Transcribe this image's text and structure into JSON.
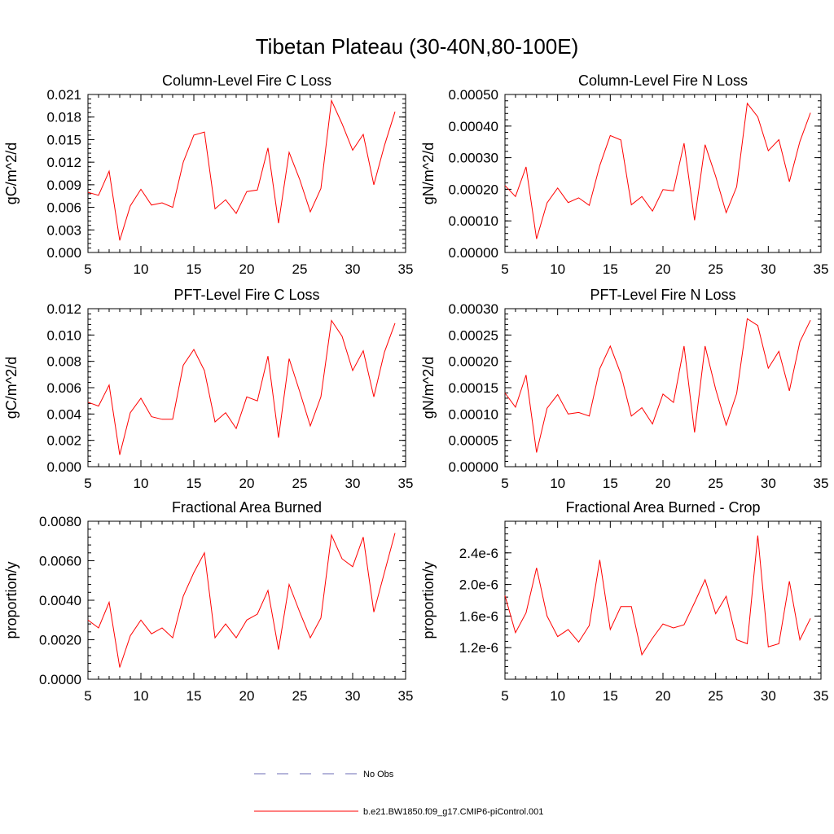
{
  "title": "Tibetan Plateau (30-40N,80-100E)",
  "legend": {
    "items": [
      {
        "label": "No Obs",
        "color": "#6b6bb5",
        "dash": true
      },
      {
        "label": "b.e21.BW1850.f09_g17.CMIP6-piControl.001",
        "color": "#ff0000",
        "dash": false
      }
    ]
  },
  "chart_data": [
    {
      "type": "line",
      "title": "Column-Level Fire C Loss",
      "xlabel": "",
      "ylabel": "gC/m^2/d",
      "xlim": [
        5,
        35
      ],
      "ylim": [
        0,
        0.021
      ],
      "x_ticks": [
        "5",
        "10",
        "15",
        "20",
        "25",
        "30",
        "35"
      ],
      "y_ticks": [
        "0.000",
        "0.003",
        "0.006",
        "0.009",
        "0.012",
        "0.015",
        "0.018",
        "0.021"
      ],
      "y_tick_values": [
        0,
        0.003,
        0.006,
        0.009,
        0.012,
        0.015,
        0.018,
        0.021
      ],
      "series": [
        {
          "name": "b.e21.BW1850.f09_g17.CMIP6-piControl.001",
          "color": "#ff0000",
          "x": [
            5,
            6,
            7,
            8,
            9,
            10,
            11,
            12,
            13,
            14,
            15,
            16,
            17,
            18,
            19,
            20,
            21,
            22,
            23,
            24,
            25,
            26,
            27,
            28,
            29,
            30,
            31,
            32,
            33,
            34
          ],
          "values": [
            0.008,
            0.0076,
            0.0108,
            0.0016,
            0.0062,
            0.0084,
            0.0063,
            0.0066,
            0.006,
            0.012,
            0.0156,
            0.016,
            0.0058,
            0.007,
            0.0052,
            0.0081,
            0.0083,
            0.0139,
            0.0039,
            0.0133,
            0.0097,
            0.0054,
            0.0085,
            0.0202,
            0.0171,
            0.0136,
            0.0157,
            0.009,
            0.0142,
            0.0187
          ]
        }
      ]
    },
    {
      "type": "line",
      "title": "Column-Level Fire N Loss",
      "xlabel": "",
      "ylabel": "gN/m^2/d",
      "xlim": [
        5,
        35
      ],
      "ylim": [
        0,
        0.0005
      ],
      "x_ticks": [
        "5",
        "10",
        "15",
        "20",
        "25",
        "30",
        "35"
      ],
      "y_ticks": [
        "0.00000",
        "0.00010",
        "0.00020",
        "0.00030",
        "0.00040",
        "0.00050"
      ],
      "y_tick_values": [
        0,
        0.0001,
        0.0002,
        0.0003,
        0.0004,
        0.0005
      ],
      "series": [
        {
          "name": "b.e21.BW1850.f09_g17.CMIP6-piControl.001",
          "color": "#ff0000",
          "x": [
            5,
            6,
            7,
            8,
            9,
            10,
            11,
            12,
            13,
            14,
            15,
            16,
            17,
            18,
            19,
            20,
            21,
            22,
            23,
            24,
            25,
            26,
            27,
            28,
            29,
            30,
            31,
            32,
            33,
            34
          ],
          "values": [
            0.000212,
            0.000177,
            0.000271,
            4.3e-05,
            0.000157,
            0.000204,
            0.000158,
            0.000173,
            0.000149,
            0.000275,
            0.00037,
            0.000356,
            0.000151,
            0.000177,
            0.000131,
            0.000199,
            0.000195,
            0.000346,
            0.000102,
            0.000341,
            0.000241,
            0.000126,
            0.000208,
            0.000472,
            0.000429,
            0.000322,
            0.000357,
            0.000224,
            0.000351,
            0.000442
          ]
        }
      ]
    },
    {
      "type": "line",
      "title": "PFT-Level Fire C Loss",
      "xlabel": "",
      "ylabel": "gC/m^2/d",
      "xlim": [
        5,
        35
      ],
      "ylim": [
        0,
        0.012
      ],
      "x_ticks": [
        "5",
        "10",
        "15",
        "20",
        "25",
        "30",
        "35"
      ],
      "y_ticks": [
        "0.000",
        "0.002",
        "0.004",
        "0.006",
        "0.008",
        "0.010",
        "0.012"
      ],
      "y_tick_values": [
        0,
        0.002,
        0.004,
        0.006,
        0.008,
        0.01,
        0.012
      ],
      "series": [
        {
          "name": "b.e21.BW1850.f09_g17.CMIP6-piControl.001",
          "color": "#ff0000",
          "x": [
            5,
            6,
            7,
            8,
            9,
            10,
            11,
            12,
            13,
            14,
            15,
            16,
            17,
            18,
            19,
            20,
            21,
            22,
            23,
            24,
            25,
            26,
            27,
            28,
            29,
            30,
            31,
            32,
            33,
            34
          ],
          "values": [
            0.0049,
            0.0046,
            0.0062,
            0.0009,
            0.0041,
            0.0052,
            0.0038,
            0.0036,
            0.0036,
            0.0077,
            0.0089,
            0.0073,
            0.0034,
            0.0041,
            0.0029,
            0.0053,
            0.005,
            0.0084,
            0.0022,
            0.0082,
            0.0057,
            0.0031,
            0.0053,
            0.0111,
            0.0099,
            0.0073,
            0.0088,
            0.0053,
            0.0087,
            0.0109
          ]
        }
      ]
    },
    {
      "type": "line",
      "title": "PFT-Level Fire N Loss",
      "xlabel": "",
      "ylabel": "gN/m^2/d",
      "xlim": [
        5,
        35
      ],
      "ylim": [
        0,
        0.0003
      ],
      "x_ticks": [
        "5",
        "10",
        "15",
        "20",
        "25",
        "30",
        "35"
      ],
      "y_ticks": [
        "0.00000",
        "0.00005",
        "0.00010",
        "0.00015",
        "0.00020",
        "0.00025",
        "0.00030"
      ],
      "y_tick_values": [
        0,
        5e-05,
        0.0001,
        0.00015,
        0.0002,
        0.00025,
        0.0003
      ],
      "series": [
        {
          "name": "b.e21.BW1850.f09_g17.CMIP6-piControl.001",
          "color": "#ff0000",
          "x": [
            5,
            6,
            7,
            8,
            9,
            10,
            11,
            12,
            13,
            14,
            15,
            16,
            17,
            18,
            19,
            20,
            21,
            22,
            23,
            24,
            25,
            26,
            27,
            28,
            29,
            30,
            31,
            32,
            33,
            34
          ],
          "values": [
            0.00014,
            0.000113,
            0.000174,
            2.7e-05,
            0.000111,
            0.000137,
            0.0001,
            0.000103,
            9.6e-05,
            0.000186,
            0.000229,
            0.000176,
            9.6e-05,
            0.000112,
            8.1e-05,
            0.000138,
            0.000122,
            0.000229,
            6.5e-05,
            0.000229,
            0.000147,
            7.9e-05,
            0.000139,
            0.000281,
            0.000268,
            0.000187,
            0.000219,
            0.000144,
            0.000237,
            0.000278
          ]
        }
      ]
    },
    {
      "type": "line",
      "title": "Fractional Area Burned",
      "xlabel": "",
      "ylabel": "proportion/y",
      "xlim": [
        5,
        35
      ],
      "ylim": [
        0,
        0.008
      ],
      "x_ticks": [
        "5",
        "10",
        "15",
        "20",
        "25",
        "30",
        "35"
      ],
      "y_ticks": [
        "0.0000",
        "0.0020",
        "0.0040",
        "0.0060",
        "0.0080"
      ],
      "y_tick_values": [
        0,
        0.002,
        0.004,
        0.006,
        0.008
      ],
      "series": [
        {
          "name": "b.e21.BW1850.f09_g17.CMIP6-piControl.001",
          "color": "#ff0000",
          "x": [
            5,
            6,
            7,
            8,
            9,
            10,
            11,
            12,
            13,
            14,
            15,
            16,
            17,
            18,
            19,
            20,
            21,
            22,
            23,
            24,
            25,
            26,
            27,
            28,
            29,
            30,
            31,
            32,
            33,
            34
          ],
          "values": [
            0.003,
            0.0026,
            0.0039,
            0.0006,
            0.0022,
            0.003,
            0.0023,
            0.0026,
            0.0021,
            0.0042,
            0.0054,
            0.0064,
            0.0021,
            0.0028,
            0.0021,
            0.003,
            0.0033,
            0.0045,
            0.0015,
            0.0048,
            0.0034,
            0.0021,
            0.0031,
            0.0073,
            0.0061,
            0.0057,
            0.0072,
            0.0034,
            0.0054,
            0.0074
          ]
        }
      ]
    },
    {
      "type": "line",
      "title": "Fractional Area Burned - Crop",
      "xlabel": "",
      "ylabel": "proportion/y",
      "xlim": [
        5,
        35
      ],
      "ylim": [
        8e-07,
        2.8e-06
      ],
      "x_ticks": [
        "5",
        "10",
        "15",
        "20",
        "25",
        "30",
        "35"
      ],
      "y_ticks": [
        "1.2e-6",
        "1.6e-6",
        "2.0e-6",
        "2.4e-6"
      ],
      "y_tick_values": [
        1.2e-06,
        1.6e-06,
        2e-06,
        2.4e-06
      ],
      "series": [
        {
          "name": "b.e21.BW1850.f09_g17.CMIP6-piControl.001",
          "color": "#ff0000",
          "x": [
            5,
            6,
            7,
            8,
            9,
            10,
            11,
            12,
            13,
            14,
            15,
            16,
            17,
            18,
            19,
            20,
            21,
            22,
            23,
            24,
            25,
            26,
            27,
            28,
            29,
            30,
            31,
            32,
            33,
            34
          ],
          "values": [
            1.86e-06,
            1.39e-06,
            1.64e-06,
            2.21e-06,
            1.6e-06,
            1.34e-06,
            1.43e-06,
            1.27e-06,
            1.48e-06,
            2.31e-06,
            1.43e-06,
            1.72e-06,
            1.72e-06,
            1.11e-06,
            1.32e-06,
            1.5e-06,
            1.45e-06,
            1.49e-06,
            1.77e-06,
            2.06e-06,
            1.63e-06,
            1.85e-06,
            1.3e-06,
            1.25e-06,
            2.62e-06,
            1.21e-06,
            1.25e-06,
            2.04e-06,
            1.3e-06,
            1.57e-06
          ]
        }
      ]
    }
  ]
}
